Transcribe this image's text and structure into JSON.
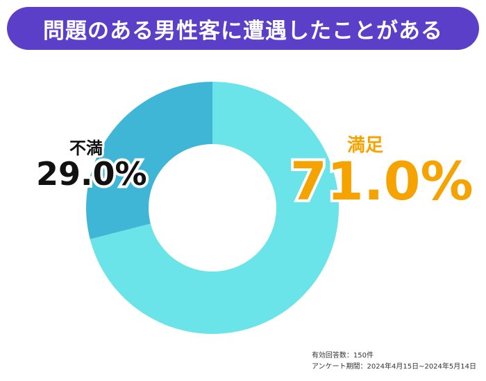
{
  "title": "問題のある男性客に遭遇したことがある",
  "chart_data": {
    "type": "pie",
    "variant": "donut",
    "slices": [
      {
        "label": "満足",
        "value": 71.0,
        "display": "71.0%",
        "color": "#6ae4e8"
      },
      {
        "label": "不満",
        "value": 29.0,
        "display": "29.0%",
        "color": "#40b6d6"
      }
    ],
    "label_colors": {
      "satisfied": "#f5a300",
      "dissatisfied": "#111111"
    }
  },
  "footnote": {
    "respondents": "有効回答数：150件",
    "period": "アンケート期間：2024年4月15日~2024年5月14日"
  },
  "colors": {
    "title_bg": "#5b3fc8",
    "title_text": "#ffffff",
    "accent": "#f5a300"
  }
}
